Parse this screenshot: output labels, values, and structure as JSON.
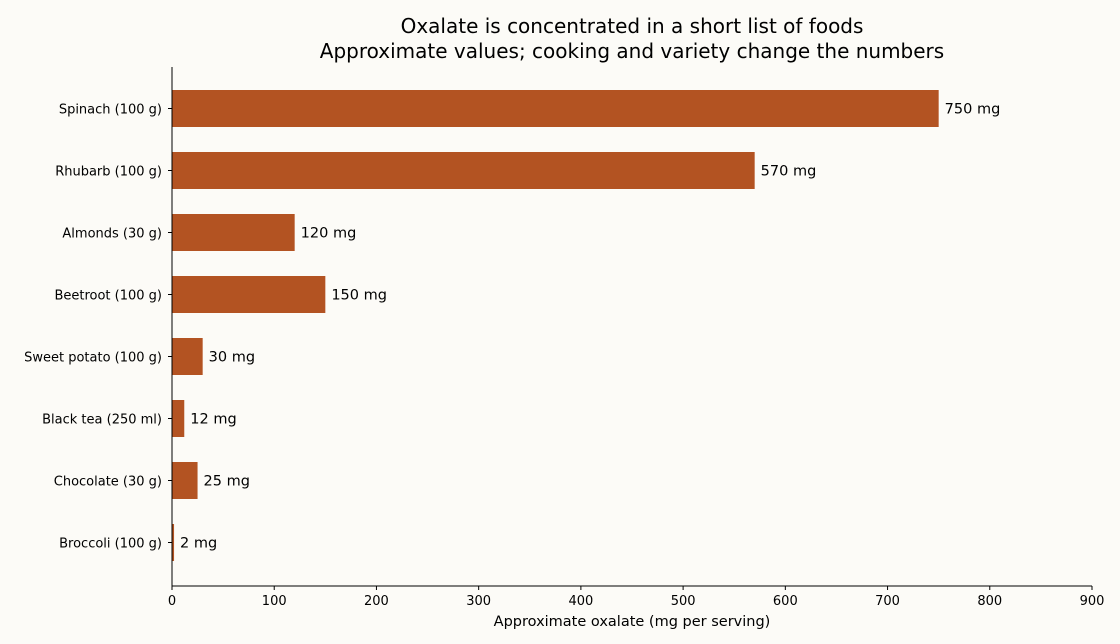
{
  "chart_data": {
    "type": "bar",
    "orientation": "horizontal",
    "title": "Oxalate is concentrated in a short list of foods",
    "subtitle": "Approximate values; cooking and variety change the numbers",
    "xlabel": "Approximate oxalate (mg per serving)",
    "ylabel": "",
    "xlim": [
      0,
      900
    ],
    "xticks": [
      0,
      100,
      200,
      300,
      400,
      500,
      600,
      700,
      800,
      900
    ],
    "categories": [
      "Spinach (100 g)",
      "Rhubarb (100 g)",
      "Almonds (30 g)",
      "Beetroot (100 g)",
      "Sweet potato (100 g)",
      "Black tea (250 ml)",
      "Chocolate (30 g)",
      "Broccoli (100 g)"
    ],
    "values": [
      750,
      570,
      120,
      150,
      30,
      12,
      25,
      2
    ],
    "data_labels": [
      "750 mg",
      "570 mg",
      "120 mg",
      "150 mg",
      "30 mg",
      "12 mg",
      "25 mg",
      "2 mg"
    ],
    "bar_color": "#b35322",
    "grid": false,
    "legend": "none"
  }
}
